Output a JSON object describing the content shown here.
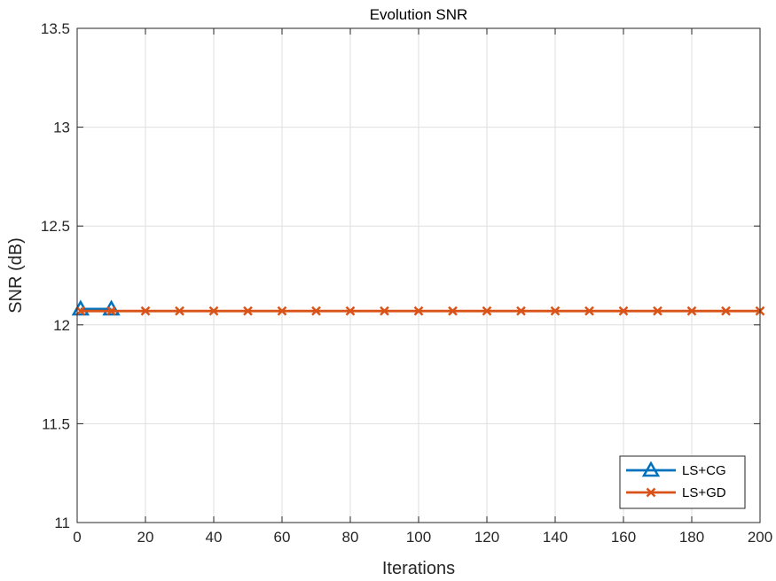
{
  "chart_data": {
    "type": "line",
    "title": "Evolution SNR",
    "xlabel": "Iterations",
    "ylabel": "SNR (dB)",
    "xlim": [
      0,
      200
    ],
    "ylim": [
      11,
      13.5
    ],
    "xticks": [
      0,
      20,
      40,
      60,
      80,
      100,
      120,
      140,
      160,
      180,
      200
    ],
    "yticks": [
      11,
      11.5,
      12,
      12.5,
      13,
      13.5
    ],
    "grid": true,
    "legend_position": "bottom-right",
    "series": [
      {
        "name": "LS+CG",
        "color": "#0072BD",
        "marker": "triangle",
        "x": [
          1,
          10
        ],
        "y": [
          12.08,
          12.08
        ]
      },
      {
        "name": "LS+GD",
        "color": "#D95319",
        "marker": "x",
        "x": [
          1,
          10,
          20,
          30,
          40,
          50,
          60,
          70,
          80,
          90,
          100,
          110,
          120,
          130,
          140,
          150,
          160,
          170,
          180,
          190,
          200
        ],
        "y": [
          12.07,
          12.07,
          12.07,
          12.07,
          12.07,
          12.07,
          12.07,
          12.07,
          12.07,
          12.07,
          12.07,
          12.07,
          12.07,
          12.07,
          12.07,
          12.07,
          12.07,
          12.07,
          12.07,
          12.07,
          12.07
        ]
      }
    ]
  }
}
